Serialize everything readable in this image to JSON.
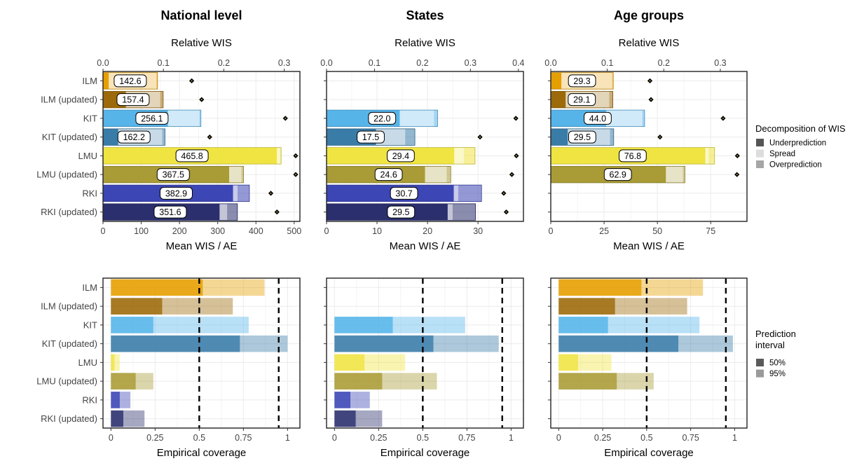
{
  "colors": {
    "ILM": "#E69F00",
    "ILM (updated)": "#9C6A0A",
    "KIT": "#56B4E9",
    "KIT (updated)": "#3A7CA8",
    "LMU": "#F0E442",
    "LMU (updated)": "#A99B36",
    "RKI": "#3C46B4",
    "RKI (updated)": "#2B2F6E"
  },
  "legends": {
    "wis": {
      "title": "Decomposition of WIS",
      "items": [
        {
          "label": "Underprediction",
          "color": "#555555"
        },
        {
          "label": "Spread",
          "color": "#dddddd"
        },
        {
          "label": "Overprediction",
          "color": "#a6a6a6"
        }
      ]
    },
    "coverage": {
      "title_lines": [
        "Prediction",
        "interval"
      ],
      "items": [
        {
          "label": "50%",
          "color": "#5a5a5a"
        },
        {
          "label": "95%",
          "color": "#9a9a9a"
        }
      ]
    }
  },
  "chart_data": [
    {
      "type": "bar",
      "panel": "wis",
      "title": "National level",
      "xlabel": "Mean WIS / AE",
      "top_axis_label": "Relative WIS",
      "xlim": [
        0,
        515
      ],
      "xticks": [
        0,
        100,
        200,
        300,
        400,
        500
      ],
      "top_ticks": [
        0.0,
        0.1,
        0.2,
        0.3
      ],
      "top_scale": 1580,
      "categories": [
        "ILM",
        "ILM (updated)",
        "KIT",
        "KIT (updated)",
        "LMU",
        "LMU (updated)",
        "RKI",
        "RKI (updated)"
      ],
      "wis": [
        142.6,
        157.4,
        256.1,
        162.2,
        465.8,
        367.5,
        382.9,
        351.6
      ],
      "wis_labels": [
        "142.6",
        "157.4",
        "256.1",
        "162.2",
        "465.8",
        "367.5",
        "382.9",
        "351.6"
      ],
      "underprediction": [
        15,
        60,
        170,
        40,
        455,
        330,
        340,
        305
      ],
      "spread": [
        125,
        90,
        82,
        115,
        8,
        32,
        12,
        20
      ],
      "overprediction": [
        2.6,
        7.4,
        4.1,
        7.2,
        2.8,
        5.5,
        30.9,
        26.6
      ],
      "mean_ae": [
        232,
        258,
        477,
        279,
        504,
        504,
        439,
        455
      ]
    },
    {
      "type": "bar",
      "panel": "wis",
      "title": "States",
      "xlabel": "Mean WIS / AE",
      "top_axis_label": "Relative WIS",
      "xlim": [
        0,
        39
      ],
      "xticks": [
        0,
        10,
        20,
        30
      ],
      "top_ticks": [
        0.0,
        0.1,
        0.2,
        0.3,
        0.4
      ],
      "top_scale": 95,
      "categories": [
        "ILM",
        "ILM (updated)",
        "KIT",
        "KIT (updated)",
        "LMU",
        "LMU (updated)",
        "RKI",
        "RKI (updated)"
      ],
      "wis": [
        null,
        null,
        22.0,
        17.5,
        29.4,
        24.6,
        30.7,
        29.5
      ],
      "wis_labels": [
        "",
        "",
        "22.0",
        "17.5",
        "29.4",
        "24.6",
        "30.7",
        "29.5"
      ],
      "underprediction": [
        null,
        null,
        14.5,
        9.8,
        25.3,
        19.5,
        25.2,
        24.0
      ],
      "spread": [
        null,
        null,
        6.8,
        5.8,
        1.9,
        4.3,
        0.9,
        1.0
      ],
      "overprediction": [
        null,
        null,
        0.7,
        1.9,
        2.2,
        0.8,
        4.6,
        4.5
      ],
      "mean_ae": [
        null,
        null,
        37.5,
        30.4,
        37.6,
        36.7,
        35.1,
        35.6
      ]
    },
    {
      "type": "bar",
      "panel": "wis",
      "title": "Age groups",
      "xlabel": "Mean WIS / AE",
      "top_axis_label": "Relative WIS",
      "xlim": [
        0,
        92
      ],
      "xticks": [
        0,
        25,
        50,
        75
      ],
      "top_ticks": [
        0.0,
        0.1,
        0.2,
        0.3
      ],
      "top_scale": 265,
      "categories": [
        "ILM",
        "ILM (updated)",
        "KIT",
        "KIT (updated)",
        "LMU",
        "LMU (updated)",
        "RKI",
        "RKI (updated)"
      ],
      "wis": [
        29.3,
        29.1,
        44.0,
        29.5,
        76.8,
        62.9,
        null,
        null
      ],
      "wis_labels": [
        "29.3",
        "29.1",
        "44.0",
        "29.5",
        "76.8",
        "62.9",
        "",
        ""
      ],
      "underprediction": [
        5.0,
        7.0,
        26.0,
        8.0,
        72.5,
        54.0,
        null,
        null
      ],
      "spread": [
        23.8,
        20.5,
        17.0,
        19.8,
        1.5,
        8.0,
        null,
        null
      ],
      "overprediction": [
        0.5,
        1.6,
        1.0,
        1.7,
        2.8,
        0.9,
        null,
        null
      ],
      "mean_ae": [
        46.5,
        47.0,
        80.8,
        51.2,
        87.5,
        87.3,
        null,
        null
      ]
    },
    {
      "type": "bar",
      "panel": "coverage",
      "title": "",
      "xlabel": "Empirical coverage",
      "xlim": [
        -0.045,
        1.07
      ],
      "xticks": [
        0,
        0.25,
        0.5,
        0.75,
        1
      ],
      "xtick_labels": [
        "0",
        "0.25",
        "0.5",
        "0.75",
        "1"
      ],
      "reference_lines": [
        0.5,
        0.95
      ],
      "categories": [
        "ILM",
        "ILM (updated)",
        "KIT",
        "KIT (updated)",
        "LMU",
        "LMU (updated)",
        "RKI",
        "RKI (updated)"
      ],
      "coverage_50": [
        0.52,
        0.29,
        0.24,
        0.73,
        0.02,
        0.14,
        0.05,
        0.07
      ],
      "coverage_95": [
        0.87,
        0.69,
        0.78,
        1.0,
        0.05,
        0.24,
        0.11,
        0.19
      ]
    },
    {
      "type": "bar",
      "panel": "coverage",
      "title": "",
      "xlabel": "Empirical coverage",
      "xlim": [
        -0.045,
        1.07
      ],
      "xticks": [
        0,
        0.25,
        0.5,
        0.75,
        1
      ],
      "xtick_labels": [
        "0",
        "0.25",
        "0.5",
        "0.75",
        "1"
      ],
      "reference_lines": [
        0.5,
        0.95
      ],
      "categories": [
        "ILM",
        "ILM (updated)",
        "KIT",
        "KIT (updated)",
        "LMU",
        "LMU (updated)",
        "RKI",
        "RKI (updated)"
      ],
      "coverage_50": [
        null,
        null,
        0.33,
        0.56,
        0.17,
        0.27,
        0.09,
        0.12
      ],
      "coverage_95": [
        null,
        null,
        0.74,
        0.93,
        0.4,
        0.58,
        0.2,
        0.27
      ]
    },
    {
      "type": "bar",
      "panel": "coverage",
      "title": "",
      "xlabel": "Empirical coverage",
      "xlim": [
        -0.045,
        1.07
      ],
      "xticks": [
        0,
        0.25,
        0.5,
        0.75,
        1
      ],
      "xtick_labels": [
        "0",
        "0.25",
        "0.5",
        "0.75",
        "1"
      ],
      "reference_lines": [
        0.5,
        0.95
      ],
      "categories": [
        "ILM",
        "ILM (updated)",
        "KIT",
        "KIT (updated)",
        "LMU",
        "LMU (updated)",
        "RKI",
        "RKI (updated)"
      ],
      "coverage_50": [
        0.47,
        0.32,
        0.28,
        0.68,
        0.11,
        0.33,
        null,
        null
      ],
      "coverage_95": [
        0.82,
        0.73,
        0.8,
        0.99,
        0.3,
        0.54,
        null,
        null
      ]
    }
  ]
}
